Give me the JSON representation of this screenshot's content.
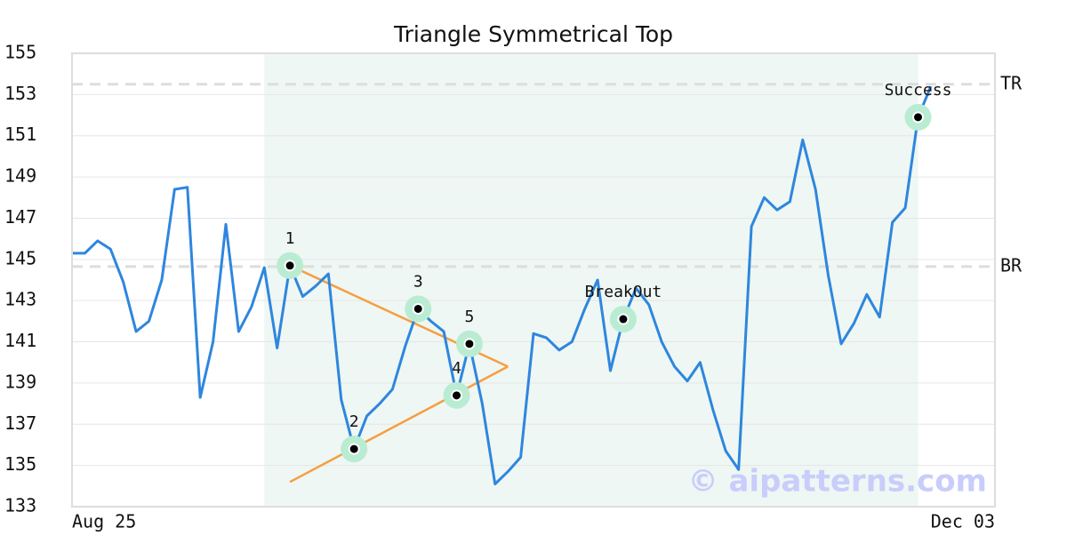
{
  "chart_data": {
    "type": "line",
    "title": "Triangle Symmetrical Top",
    "values": [
      145.3,
      145.3,
      145.9,
      145.5,
      143.9,
      141.5,
      142.0,
      144.0,
      148.4,
      148.5,
      138.3,
      141.0,
      146.7,
      141.5,
      142.7,
      144.6,
      140.7,
      144.7,
      143.2,
      143.7,
      144.3,
      138.2,
      135.8,
      137.4,
      138.0,
      138.7,
      140.8,
      142.6,
      142.0,
      141.5,
      138.4,
      140.9,
      138.0,
      134.1,
      134.7,
      135.4,
      141.4,
      141.2,
      140.6,
      141.0,
      142.6,
      144.0,
      139.6,
      142.1,
      143.6,
      142.8,
      141.0,
      139.8,
      139.1,
      140.0,
      137.7,
      135.7,
      134.8,
      146.6,
      148.0,
      147.4,
      147.8,
      150.8,
      148.4,
      144.2,
      140.9,
      141.9,
      143.3,
      142.2,
      146.8,
      147.5,
      151.9,
      153.4
    ],
    "color": "#2e86de",
    "xlim": [
      0,
      72
    ],
    "xticks": [
      {
        "value": 0,
        "label": "Aug 25"
      },
      {
        "value": 72,
        "label": "Dec 03"
      }
    ],
    "ylim": [
      133,
      155
    ],
    "yticks": [
      133,
      135,
      137,
      139,
      141,
      143,
      145,
      147,
      149,
      151,
      153,
      155
    ],
    "grid": true,
    "shade": {
      "from": 15,
      "to": 66,
      "color": "#eef7f3"
    },
    "levels": [
      {
        "label": "TR",
        "value": 153.5
      },
      {
        "label": "BR",
        "value": 144.65
      }
    ],
    "pattern_lines": {
      "color": "#f59e42",
      "lines": [
        [
          [
            17,
            144.7
          ],
          [
            34,
            139.8
          ]
        ],
        [
          [
            17,
            134.2
          ],
          [
            34,
            139.8
          ]
        ]
      ]
    },
    "points": [
      {
        "label": "1",
        "x": 17,
        "y": 144.7
      },
      {
        "label": "2",
        "x": 22,
        "y": 135.8
      },
      {
        "label": "3",
        "x": 27,
        "y": 142.6
      },
      {
        "label": "4",
        "x": 30,
        "y": 138.4
      },
      {
        "label": "5",
        "x": 31,
        "y": 140.9
      },
      {
        "label": "BreakOut",
        "x": 43,
        "y": 142.1
      },
      {
        "label": "Success",
        "x": 66,
        "y": 151.9
      }
    ],
    "watermark": "© aipatterns.com"
  }
}
